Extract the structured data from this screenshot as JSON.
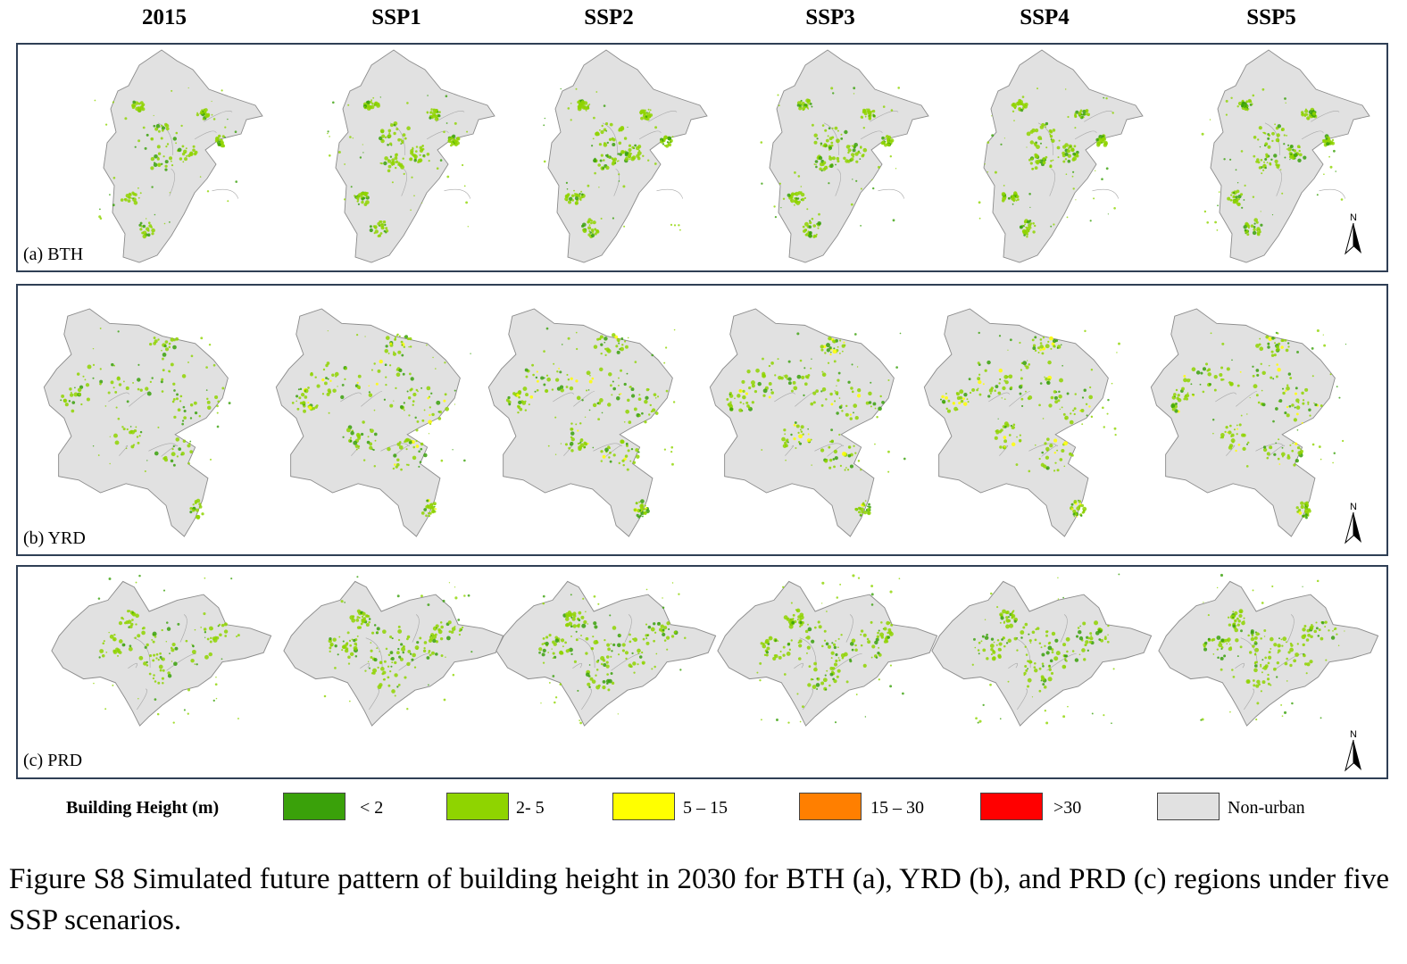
{
  "columns": [
    "2015",
    "SSP1",
    "SSP2",
    "SSP3",
    "SSP4",
    "SSP5"
  ],
  "panels": [
    {
      "label": "(a) BTH",
      "region": "BTH"
    },
    {
      "label": "(b) YRD",
      "region": "YRD"
    },
    {
      "label": "(c) PRD",
      "region": "PRD"
    }
  ],
  "north_label": "N",
  "legend": {
    "title": "Building Height (m)",
    "items": [
      {
        "label": "< 2",
        "color": "#3aa10a"
      },
      {
        "label": "2- 5",
        "color": "#8fd400"
      },
      {
        "label": "5 – 15",
        "color": "#ffff00"
      },
      {
        "label": "15 – 30",
        "color": "#ff7f00"
      },
      {
        "label": ">30",
        "color": "#ff0000"
      },
      {
        "label": "Non-urban",
        "color": "#e1e1e1"
      }
    ]
  },
  "colors": {
    "panel_border": "#2f3f55",
    "boundary": "#8c8c8c",
    "non_urban": "#e1e1e1"
  },
  "caption": "Figure S8 Simulated future pattern of building height in 2030 for BTH (a), YRD (b), and PRD (c) regions under five SSP scenarios."
}
